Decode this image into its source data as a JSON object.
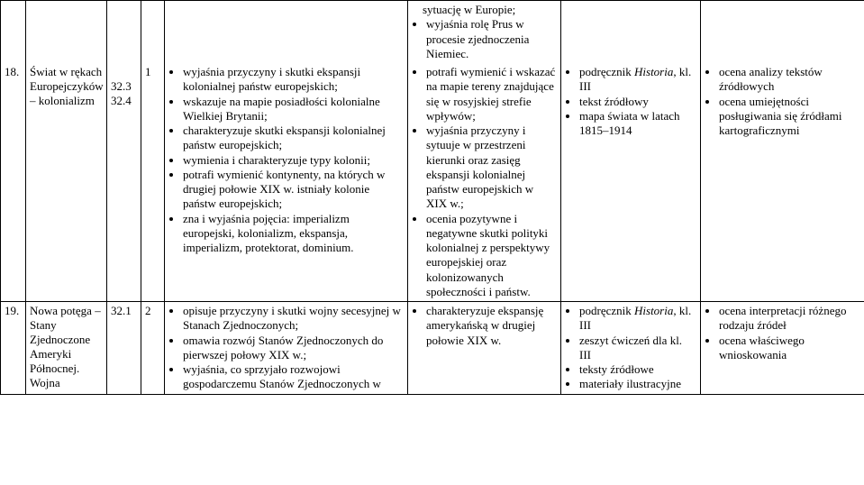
{
  "row_top": {
    "mid_bullets": [
      "sytuację w Europie;",
      "wyjaśnia rolę Prus w procesie zjednoczenia Niemiec."
    ]
  },
  "row18": {
    "num_label": "18.",
    "topic": "Świat w rękach Europejczyków – kolonializm",
    "colA": "32.3\n32.4",
    "colB": "1",
    "main_bullets": [
      "wyjaśnia przyczyny i skutki ekspansji kolonialnej państw europejskich;",
      "wskazuje na mapie posiadłości kolonialne Wielkiej Brytanii;",
      "charakteryzuje skutki ekspansji kolonialnej państw europejskich;",
      "wymienia i charakteryzuje typy kolonii;",
      "potrafi wymienić kontynenty, na których w drugiej połowie XIX w. istniały kolonie państw europejskich;",
      "zna i wyjaśnia pojęcia: imperializm europejski, kolonializm, ekspansja, imperializm, protektorat, dominium."
    ],
    "mid_bullets": [
      "potrafi wymienić i wskazać na mapie tereny znajdujące się w rosyjskiej strefie wpływów;",
      "wyjaśnia przyczyny i sytuuje w przestrzeni kierunki oraz zasięg ekspansji kolonialnej państw europejskich w XIX w.;",
      "ocenia pozytywne i negatywne skutki polityki kolonialnej z perspektywy europejskiej oraz kolonizowanych społeczności i państw."
    ],
    "res_bullets": [
      "podręcznik Historia, kl. III",
      "tekst źródłowy",
      "mapa świata w latach 1815–1914"
    ],
    "eval_bullets": [
      "ocena analizy tekstów źródłowych",
      "ocena umiejętności posługiwania się źródłami kartograficznymi"
    ]
  },
  "row19": {
    "num_label": "19.",
    "topic": "Nowa potęga – Stany Zjednoczone Ameryki Północnej. Wojna",
    "colA": "32.1",
    "colB": "2",
    "main_bullets": [
      "opisuje przyczyny i skutki wojny secesyjnej w Stanach Zjednoczonych;",
      "omawia rozwój Stanów Zjednoczonych do pierwszej połowy XIX w.;",
      "wyjaśnia, co sprzyjało rozwojowi gospodarczemu Stanów Zjednoczonych w"
    ],
    "mid_bullets": [
      "charakteryzuje ekspansję amerykańską w drugiej połowie XIX w."
    ],
    "res_bullets": [
      "podręcznik Historia, kl. III",
      "zeszyt ćwiczeń dla kl. III",
      "teksty źródłowe",
      "materiały ilustracyjne"
    ],
    "eval_bullets": [
      "ocena interpretacji różnego rodzaju źródeł",
      "ocena właściwego wnioskowania"
    ]
  }
}
